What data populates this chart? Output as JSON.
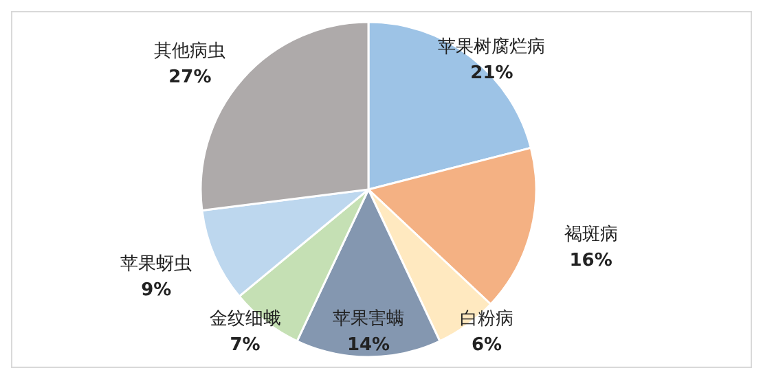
{
  "chart_data": {
    "type": "pie",
    "categories": [
      "苹果树腐烂病",
      "褐斑病",
      "白粉病",
      "苹果害螨",
      "金纹细蛾",
      "苹果蚜虫",
      "其他病虫"
    ],
    "values": [
      21,
      16,
      6,
      14,
      7,
      9,
      27
    ],
    "value_labels": [
      "21%",
      "16%",
      "6%",
      "14%",
      "7%",
      "9%",
      "27%"
    ],
    "colors": [
      "#9dc3e6",
      "#f4b183",
      "#ffe9c0",
      "#8497b0",
      "#c5e0b4",
      "#bdd7ee",
      "#aeaaaa"
    ]
  }
}
